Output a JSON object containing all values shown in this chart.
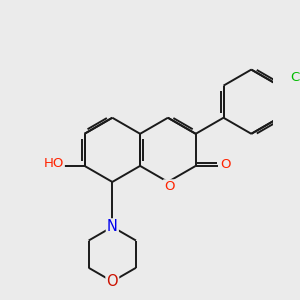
{
  "background_color": "#ebebeb",
  "bond_color": "#1a1a1a",
  "bond_width": 1.4,
  "atom_colors": {
    "O": "#ff2200",
    "O_morph": "#cc1100",
    "N": "#0000ee",
    "Cl": "#00bb00",
    "HO_H": "#337777"
  },
  "font_size": 9.5,
  "figsize": [
    3.0,
    3.0
  ],
  "dpi": 100,
  "xlim": [
    0,
    10
  ],
  "ylim": [
    0,
    10
  ]
}
